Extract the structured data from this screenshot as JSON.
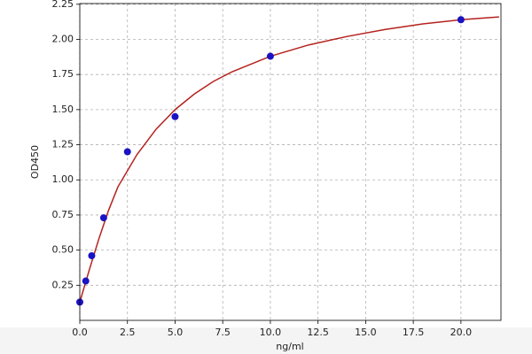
{
  "chart_data": {
    "type": "scatter",
    "x_label": "ng/ml",
    "y_label": "OD450",
    "xlim": [
      0,
      22.1
    ],
    "ylim": [
      0,
      2.255
    ],
    "xticks": [
      {
        "value": 0,
        "label": "0.0"
      },
      2.5,
      {
        "value": 5,
        "label": "5.0"
      },
      7.5,
      {
        "value": 10,
        "label": "10.0"
      },
      12.5,
      {
        "value": 15,
        "label": "15.0"
      },
      17.5,
      {
        "value": 20,
        "label": "20.0"
      }
    ],
    "yticks": [
      0.25,
      {
        "value": 0.5,
        "label": "0.50"
      },
      0.75,
      {
        "value": 1,
        "label": "1.00"
      },
      1.25,
      {
        "value": 1.5,
        "label": "1.50"
      },
      1.75,
      {
        "value": 2,
        "label": "2.00"
      },
      2.25
    ],
    "grid": true,
    "series": [
      {
        "mode": "markers",
        "color": "#1a12c4",
        "x": [
          0,
          0.3125,
          0.625,
          1.25,
          2.5,
          5,
          10,
          20
        ],
        "values": [
          0.13,
          0.28,
          0.46,
          0.73,
          1.2,
          1.45,
          1.88,
          2.14
        ]
      },
      {
        "mode": "line",
        "color": "#b5221e",
        "x": [
          0,
          0.5,
          1,
          1.5,
          2,
          3,
          4,
          5,
          6,
          7,
          8,
          10,
          12,
          14,
          16,
          18,
          20,
          22
        ],
        "values": [
          0.13,
          0.36,
          0.58,
          0.78,
          0.95,
          1.18,
          1.36,
          1.5,
          1.61,
          1.7,
          1.77,
          1.88,
          1.96,
          2.02,
          2.07,
          2.11,
          2.14,
          2.16
        ]
      }
    ]
  }
}
